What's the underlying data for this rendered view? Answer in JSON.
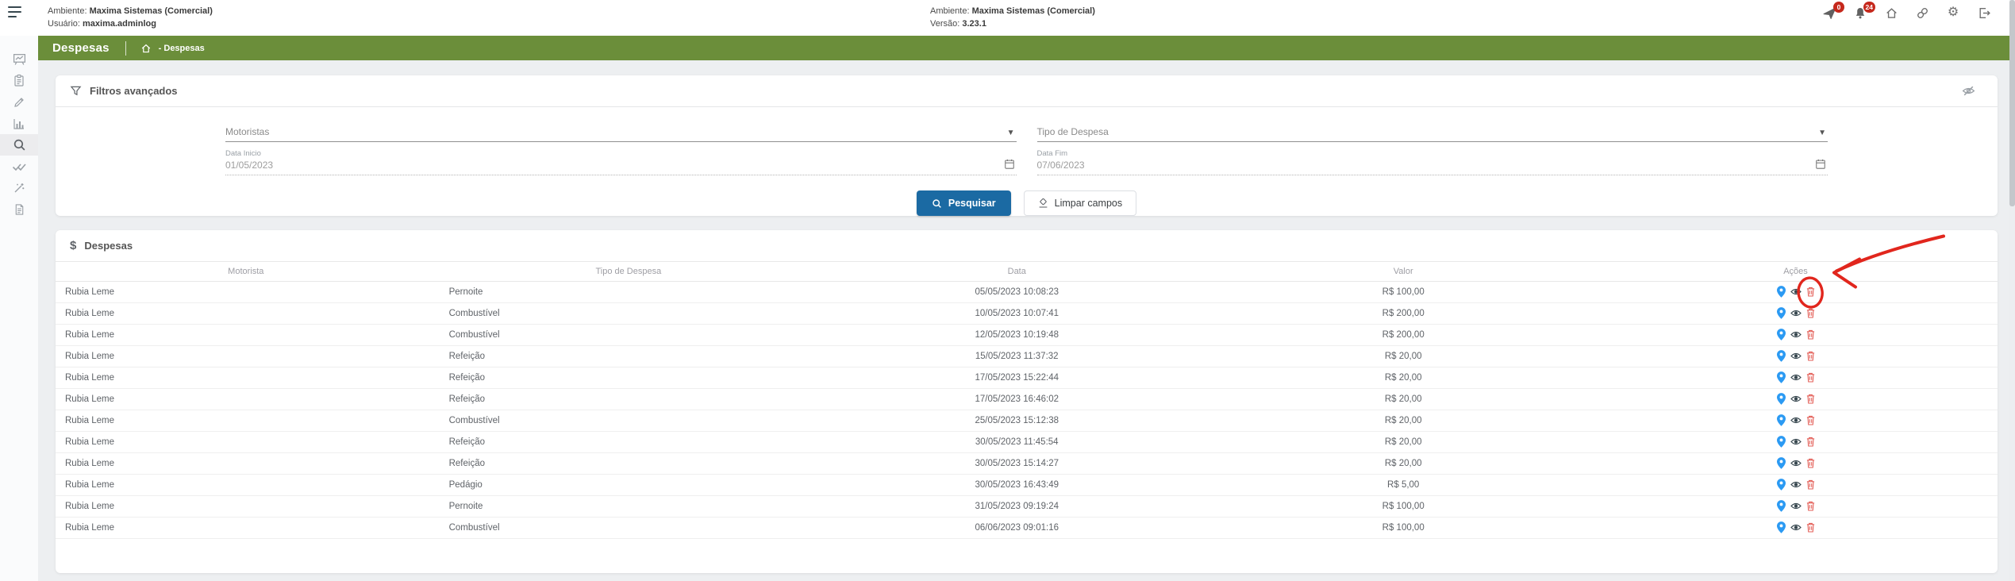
{
  "topbar": {
    "left": {
      "ambiente_label": "Ambiente:",
      "ambiente_value": "Maxima Sistemas (Comercial)",
      "usuario_label": "Usuário:",
      "usuario_value": "maxima.adminlog"
    },
    "center": {
      "ambiente_label": "Ambiente:",
      "ambiente_value": "Maxima Sistemas (Comercial)",
      "versao_label": "Versão:",
      "versao_value": "3.23.1"
    },
    "notifications": {
      "sent_badge": "0",
      "alerts_badge": "24"
    }
  },
  "titlebar": {
    "title": "Despesas",
    "breadcrumb": "- Despesas"
  },
  "filters": {
    "title": "Filtros avançados",
    "motoristas_placeholder": "Motoristas",
    "tipo_placeholder": "Tipo de Despesa",
    "data_inicio_label": "Data Inicio",
    "data_inicio_value": "01/05/2023",
    "data_fim_label": "Data Fim",
    "data_fim_value": "07/06/2023",
    "search_button": "Pesquisar",
    "clear_button": "Limpar campos"
  },
  "expenses": {
    "section_title": "Despesas",
    "columns": [
      "Motorista",
      "Tipo de Despesa",
      "Data",
      "Valor",
      "Ações"
    ],
    "rows": [
      {
        "motorista": "Rubia Leme",
        "tipo": "Pernoite",
        "data": "05/05/2023 10:08:23",
        "valor": "R$ 100,00"
      },
      {
        "motorista": "Rubia Leme",
        "tipo": "Combustível",
        "data": "10/05/2023 10:07:41",
        "valor": "R$ 200,00"
      },
      {
        "motorista": "Rubia Leme",
        "tipo": "Combustível",
        "data": "12/05/2023 10:19:48",
        "valor": "R$ 200,00"
      },
      {
        "motorista": "Rubia Leme",
        "tipo": "Refeição",
        "data": "15/05/2023 11:37:32",
        "valor": "R$ 20,00"
      },
      {
        "motorista": "Rubia Leme",
        "tipo": "Refeição",
        "data": "17/05/2023 15:22:44",
        "valor": "R$ 20,00"
      },
      {
        "motorista": "Rubia Leme",
        "tipo": "Refeição",
        "data": "17/05/2023 16:46:02",
        "valor": "R$ 20,00"
      },
      {
        "motorista": "Rubia Leme",
        "tipo": "Combustível",
        "data": "25/05/2023 15:12:38",
        "valor": "R$ 20,00"
      },
      {
        "motorista": "Rubia Leme",
        "tipo": "Refeição",
        "data": "30/05/2023 11:45:54",
        "valor": "R$ 20,00"
      },
      {
        "motorista": "Rubia Leme",
        "tipo": "Refeição",
        "data": "30/05/2023 15:14:27",
        "valor": "R$ 20,00"
      },
      {
        "motorista": "Rubia Leme",
        "tipo": "Pedágio",
        "data": "30/05/2023 16:43:49",
        "valor": "R$ 5,00"
      },
      {
        "motorista": "Rubia Leme",
        "tipo": "Pernoite",
        "data": "31/05/2023 09:19:24",
        "valor": "R$ 100,00"
      },
      {
        "motorista": "Rubia Leme",
        "tipo": "Combustível",
        "data": "06/06/2023 09:01:16",
        "valor": "R$ 100,00"
      }
    ]
  },
  "colors": {
    "header_green": "#6b8e3a",
    "primary_blue": "#1b6aa3",
    "badge_red": "#c5281c",
    "pin_blue": "#2b9af3",
    "trash_red": "#e35d56",
    "annotation_red": "#e1261d"
  }
}
